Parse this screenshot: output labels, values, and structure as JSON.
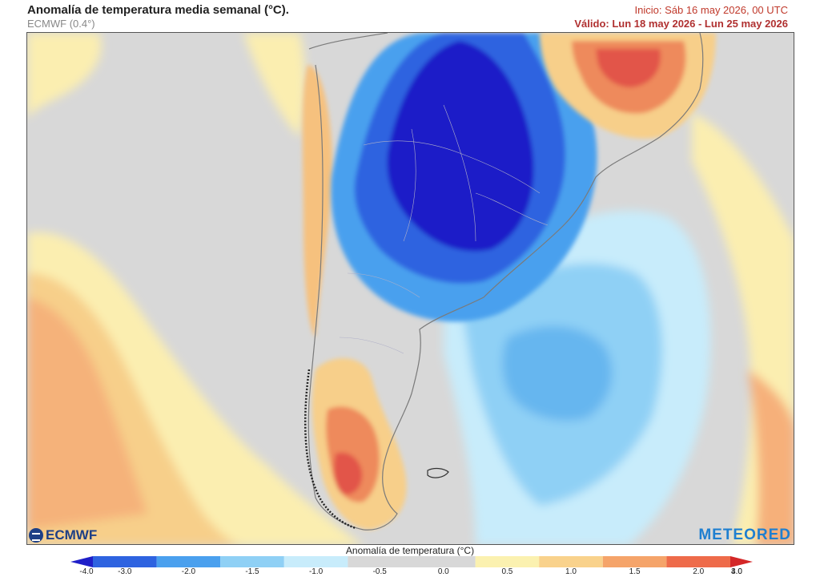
{
  "header": {
    "title": "Anomalía de temperatura media semanal (°C).",
    "model": "ECMWF (0.4°)",
    "start": "Inicio: Sáb 16 may 2026, 00 UTC",
    "valid": "Válido: Lun 18 may 2026 - Lun 25 may 2026"
  },
  "logos": {
    "left": "ECMWF",
    "right": "METEORED"
  },
  "legend": {
    "title": "Anomalía de temperatura (°C)",
    "ticks": [
      "-4.0",
      "-3.0",
      "-2.0",
      "-1.5",
      "-1.0",
      "-0.5",
      "0.0",
      "0.5",
      "1.0",
      "1.5",
      "2.0",
      "3.0",
      "4.0"
    ],
    "colors": [
      "#1f1fc8",
      "#2e63e0",
      "#4aa0ee",
      "#8fd0f5",
      "#c8ecfb",
      "#d8d8d8",
      "#d8d8d8",
      "#fbf1b0",
      "#f9d28c",
      "#f5a46a",
      "#ee6b4a",
      "#d42727"
    ]
  }
}
